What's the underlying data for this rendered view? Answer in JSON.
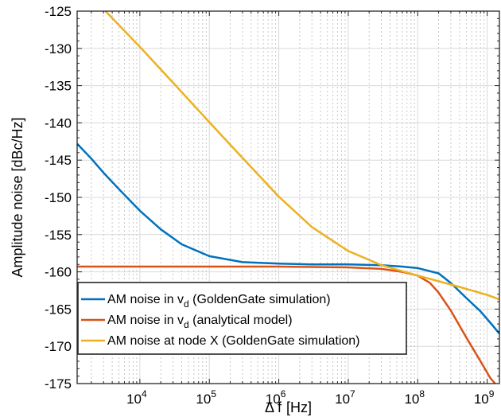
{
  "chart_data": {
    "type": "line",
    "xlabel_prefix": "Δ f",
    "xlabel_unit": "[Hz]",
    "ylabel": "Amplitude noise [dBc/Hz]",
    "xscale": "log",
    "xlim": [
      1250,
      1500000000
    ],
    "ylim": [
      -175,
      -125
    ],
    "grid": true,
    "legend_position": "bottom-left",
    "x_ticks": [
      {
        "base": "10",
        "exp": "4",
        "value": 10000
      },
      {
        "base": "10",
        "exp": "5",
        "value": 100000
      },
      {
        "base": "10",
        "exp": "6",
        "value": 1000000
      },
      {
        "base": "10",
        "exp": "7",
        "value": 10000000
      },
      {
        "base": "10",
        "exp": "8",
        "value": 100000000
      },
      {
        "base": "10",
        "exp": "9",
        "value": 1000000000
      }
    ],
    "y_ticks": [
      "-125",
      "-130",
      "-135",
      "-140",
      "-145",
      "-150",
      "-155",
      "-160",
      "-165",
      "-170",
      "-175"
    ],
    "series": [
      {
        "legend_main": "AM noise in v",
        "legend_sub": "d",
        "legend_rest": " (GoldenGate simulation)",
        "color": "#0072BD",
        "points": [
          [
            1250,
            -142.8
          ],
          [
            2000,
            -144.8
          ],
          [
            3000,
            -146.7
          ],
          [
            5000,
            -148.9
          ],
          [
            10000,
            -151.8
          ],
          [
            20000,
            -154.3
          ],
          [
            40000,
            -156.3
          ],
          [
            100000,
            -157.9
          ],
          [
            300000,
            -158.7
          ],
          [
            1000000,
            -158.9
          ],
          [
            3000000,
            -159.0
          ],
          [
            10000000,
            -159.0
          ],
          [
            30000000,
            -159.1
          ],
          [
            60000000,
            -159.3
          ],
          [
            100000000,
            -159.5
          ],
          [
            200000000,
            -160.2
          ],
          [
            300000000,
            -161.5
          ],
          [
            500000000,
            -163.5
          ],
          [
            800000000,
            -165.3
          ],
          [
            1200000000,
            -167.2
          ],
          [
            1500000000,
            -168.3
          ]
        ]
      },
      {
        "legend_main": "AM noise in v",
        "legend_sub": "d",
        "legend_rest": "  (analytical model)",
        "color": "#D95319",
        "points": [
          [
            1250,
            -159.3
          ],
          [
            100000,
            -159.3
          ],
          [
            1000000,
            -159.3
          ],
          [
            10000000,
            -159.4
          ],
          [
            30000000,
            -159.6
          ],
          [
            60000000,
            -160.0
          ],
          [
            100000000,
            -160.5
          ],
          [
            150000000,
            -161.5
          ],
          [
            200000000,
            -162.8
          ],
          [
            300000000,
            -165.2
          ],
          [
            500000000,
            -168.8
          ],
          [
            800000000,
            -172.0
          ],
          [
            1100000000,
            -174.2
          ],
          [
            1300000000,
            -175.0
          ]
        ]
      },
      {
        "legend_main": "AM noise at node X (GoldenGate simulation)",
        "legend_sub": "",
        "legend_rest": "",
        "color": "#EDB120",
        "points": [
          [
            3200,
            -125.0
          ],
          [
            10000,
            -129.8
          ],
          [
            30000,
            -134.6
          ],
          [
            100000,
            -139.9
          ],
          [
            300000,
            -144.7
          ],
          [
            1000000,
            -149.9
          ],
          [
            3000000,
            -154.0
          ],
          [
            10000000,
            -157.2
          ],
          [
            30000000,
            -159.1
          ],
          [
            100000000,
            -160.5
          ],
          [
            300000000,
            -161.7
          ],
          [
            1000000000,
            -163.1
          ],
          [
            1500000000,
            -163.7
          ]
        ]
      }
    ]
  }
}
